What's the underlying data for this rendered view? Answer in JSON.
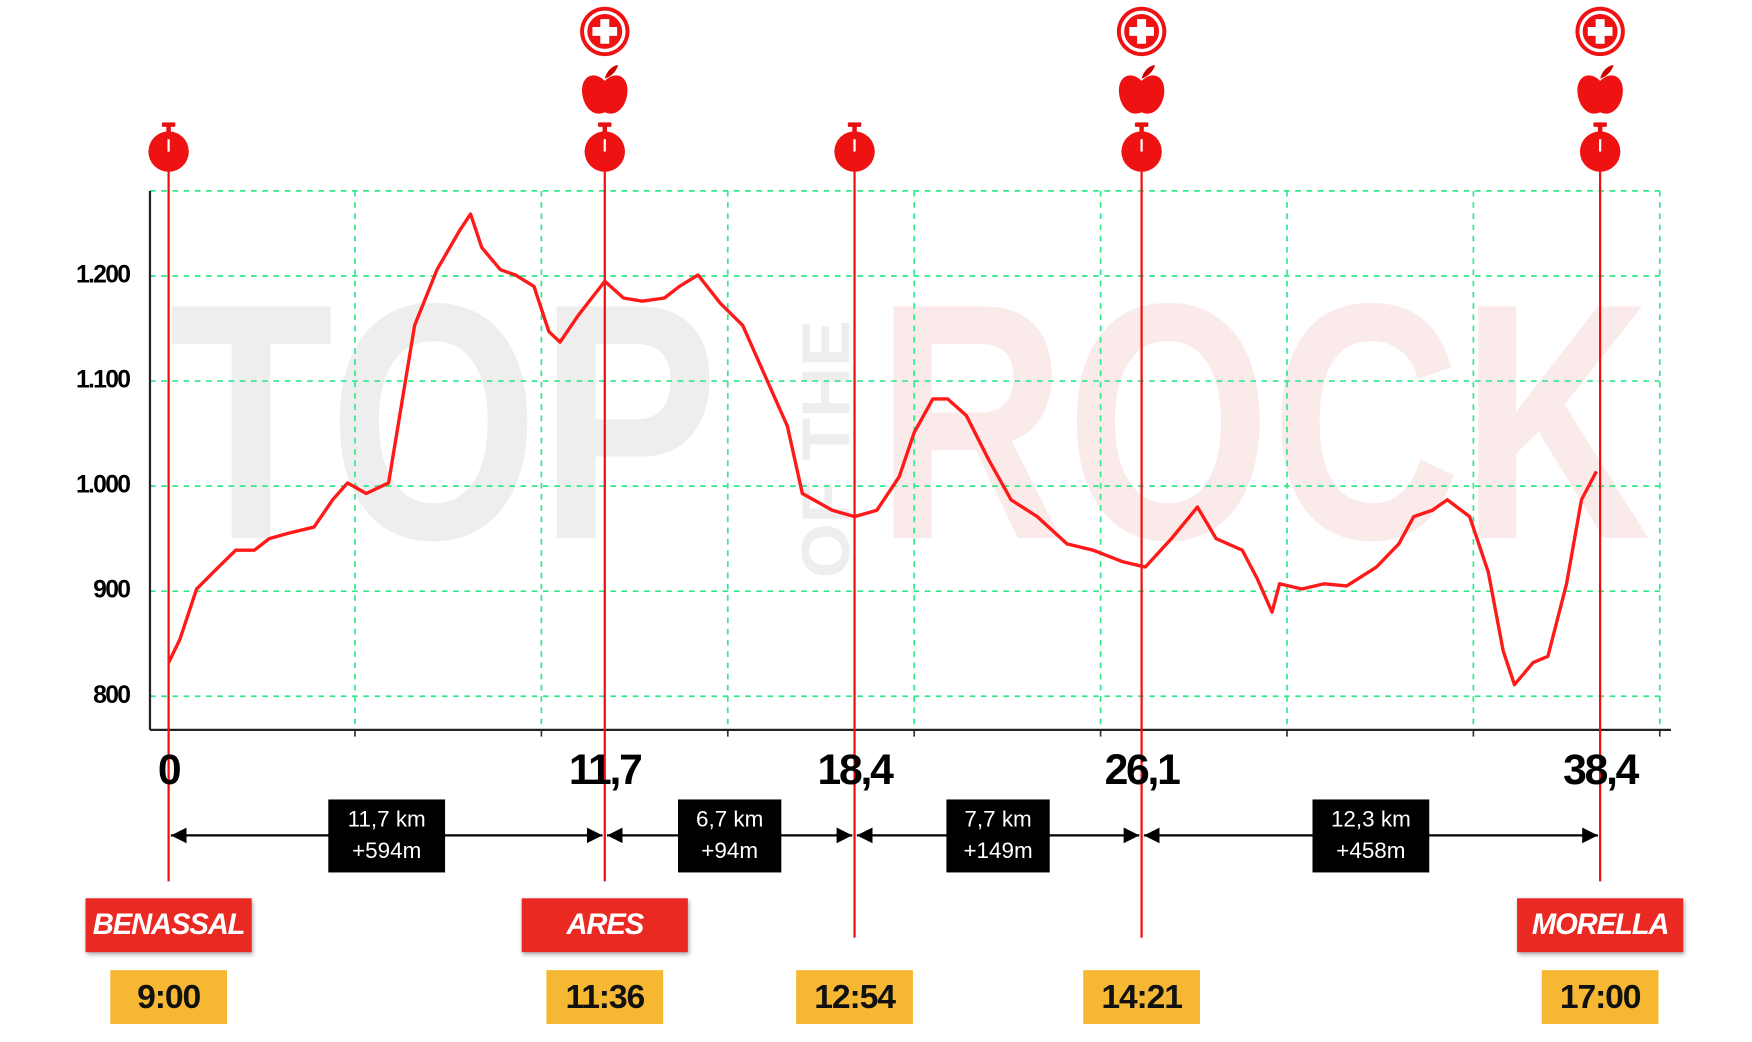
{
  "chart_data": {
    "type": "line",
    "color": "#ff1a1a",
    "x": [
      0,
      0.3,
      0.75,
      1.2,
      1.8,
      2.3,
      2.7,
      3.2,
      3.9,
      4.4,
      4.8,
      5.3,
      5.9,
      6.2,
      6.6,
      7.2,
      7.8,
      8.1,
      8.4,
      8.9,
      9.3,
      9.8,
      10.2,
      10.5,
      11.0,
      11.7,
      12.2,
      12.7,
      13.3,
      13.7,
      14.2,
      14.8,
      15.4,
      16.0,
      16.6,
      17.0,
      17.8,
      18.4,
      19.0,
      19.6,
      20.0,
      20.5,
      20.9,
      21.4,
      22.0,
      22.6,
      23.3,
      24.1,
      24.8,
      25.6,
      26.2,
      26.9,
      27.6,
      28.1,
      28.8,
      29.2,
      29.6,
      29.8,
      30.4,
      31.0,
      31.6,
      32.4,
      33.0,
      33.4,
      33.9,
      34.3,
      34.9,
      35.4,
      35.8,
      36.1,
      36.6,
      37.0,
      37.5,
      37.9,
      38.3
    ],
    "values": [
      832,
      854,
      902,
      918,
      939,
      939,
      950,
      955,
      961,
      987,
      1003,
      993,
      1003,
      1067,
      1153,
      1206,
      1243,
      1259,
      1227,
      1206,
      1201,
      1190,
      1147,
      1137,
      1163,
      1195,
      1179,
      1176,
      1179,
      1190,
      1201,
      1174,
      1153,
      1105,
      1057,
      993,
      977,
      971,
      977,
      1009,
      1051,
      1083,
      1083,
      1067,
      1025,
      987,
      971,
      945,
      939,
      928,
      923,
      950,
      980,
      950,
      939,
      912,
      880,
      907,
      902,
      907,
      905,
      923,
      945,
      971,
      977,
      987,
      971,
      918,
      843,
      811,
      832,
      838,
      907,
      987,
      1014
    ],
    "xlim": [
      -0.5,
      40.3
    ],
    "ylim": [
      768,
      1281
    ],
    "yticks": [
      800,
      900,
      {
        "value": 1000,
        "label": "1.000"
      },
      {
        "value": 1100,
        "label": "1.100"
      },
      {
        "value": 1200,
        "label": "1.200"
      }
    ],
    "xticks": [
      0,
      {
        "value": 11.7,
        "label": "11,7"
      },
      {
        "value": 18.4,
        "label": "18,4"
      },
      {
        "value": 26.1,
        "label": "26,1"
      },
      {
        "value": 38.4,
        "label": "38,4"
      }
    ],
    "xgrid": [
      0,
      5,
      10,
      15,
      20,
      25,
      30,
      35,
      40
    ],
    "grid": true,
    "segments": [
      {
        "distance": "11,7 km",
        "gain": "+594m"
      },
      {
        "distance": "6,7 km",
        "gain": "+94m"
      },
      {
        "distance": "7,7 km",
        "gain": "+149m"
      },
      {
        "distance": "12,3 km",
        "gain": "+458m"
      }
    ],
    "checkpoints": [
      {
        "town": "BENASSAL",
        "time": "9:00"
      },
      {
        "town": "ARES",
        "time": "11:36"
      },
      {
        "time": "12:54"
      },
      {
        "time": "14:21"
      },
      {
        "town": "MORELLA",
        "time": "17:00"
      }
    ],
    "watermark": [
      "TOP",
      "OF THE",
      "ROCK"
    ]
  }
}
